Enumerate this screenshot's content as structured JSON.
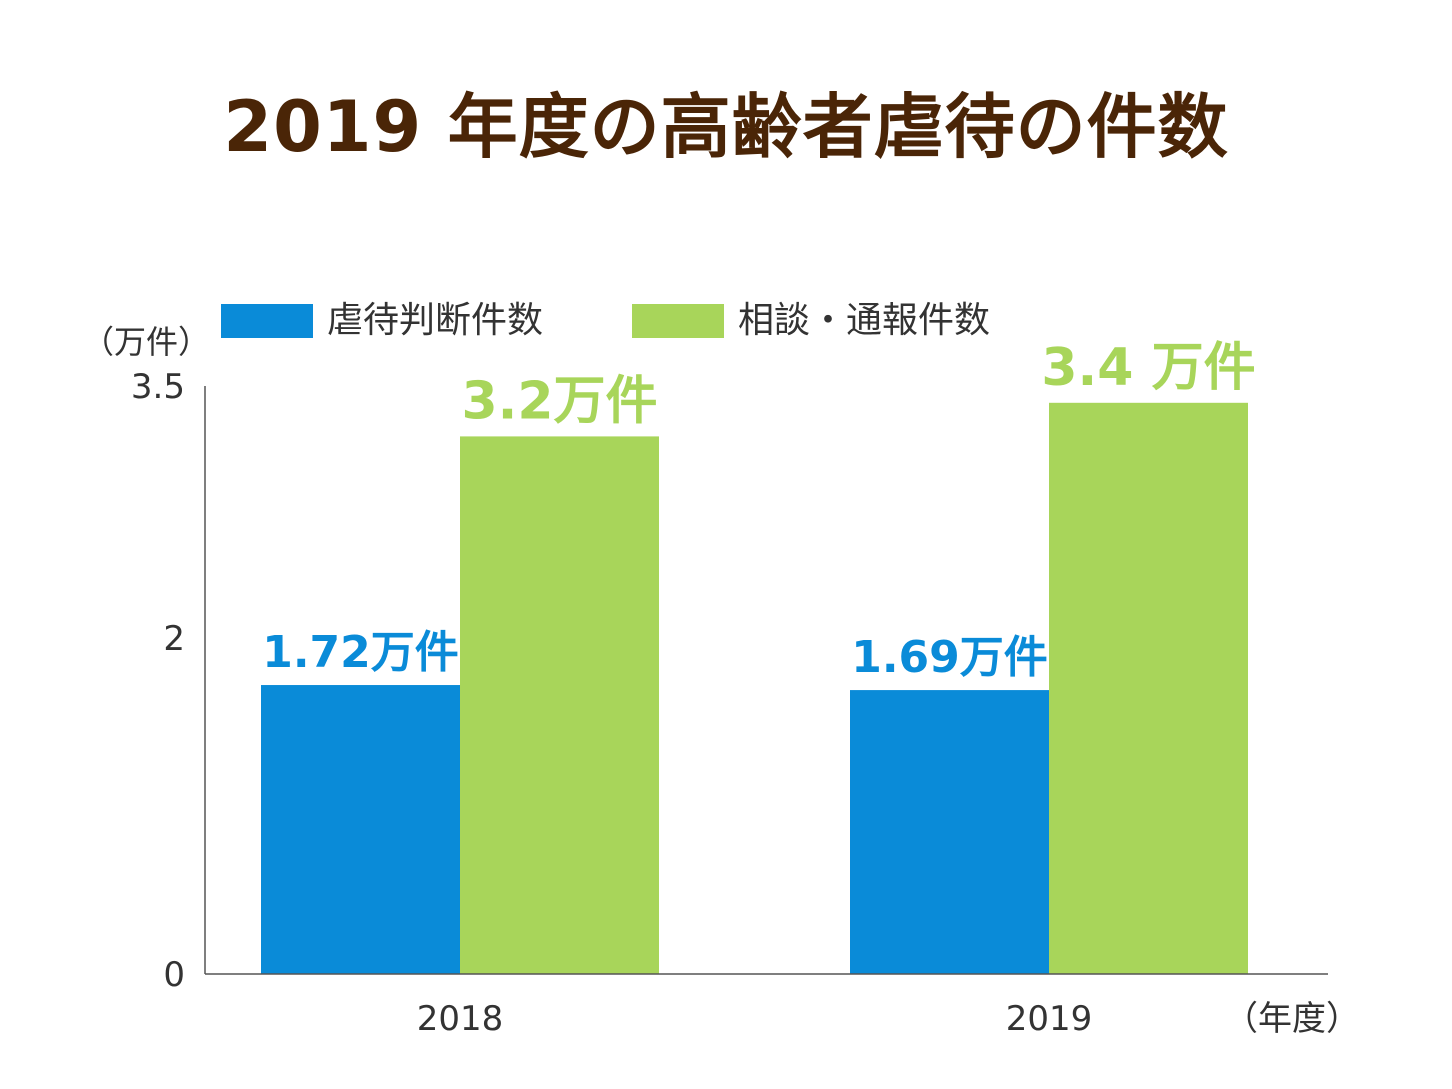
{
  "chart_data": {
    "type": "bar",
    "title": "2019 年度の高齢者虐待の件数",
    "y_unit": "（万件）",
    "x_unit": "（年度）",
    "categories": [
      "2018",
      "2019"
    ],
    "series": [
      {
        "name": "虐待判断件数",
        "values": [
          1.72,
          1.69
        ],
        "labels": [
          "1.72万件",
          "1.69万件"
        ],
        "color": "#0a8bd8"
      },
      {
        "name": "相談・通報件数",
        "values": [
          3.2,
          3.4
        ],
        "labels": [
          "3.2万件",
          "3.4 万件"
        ],
        "color": "#a8d55a"
      }
    ],
    "yticks": [
      "0",
      "2",
      "3.5"
    ],
    "ylim": [
      0,
      3.5
    ],
    "grid": false,
    "legend": "top"
  },
  "colors": {
    "title": "#4a2507",
    "axis": "#555555",
    "text": "#333333"
  }
}
